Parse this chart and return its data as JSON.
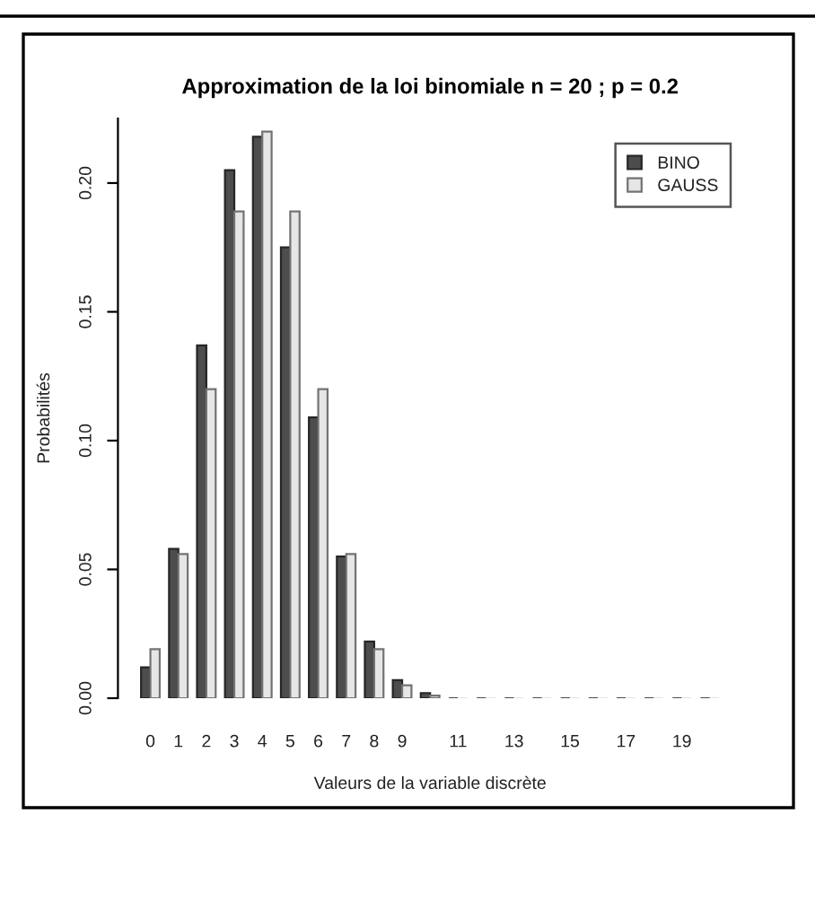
{
  "chart_data": {
    "type": "bar",
    "title": "Approximation de la loi binomiale n = 20 ; p = 0.2",
    "xlabel": "Valeurs de la variable discrète",
    "ylabel": "Probabilités",
    "categories": [
      "0",
      "1",
      "2",
      "3",
      "4",
      "5",
      "6",
      "7",
      "8",
      "9",
      null,
      "11",
      null,
      "13",
      null,
      "15",
      null,
      "17",
      null,
      "19",
      null
    ],
    "series": [
      {
        "name": "BINO",
        "color": "#4d4d4d",
        "values": [
          0.012,
          0.058,
          0.137,
          0.205,
          0.218,
          0.175,
          0.109,
          0.055,
          0.022,
          0.007,
          0.002,
          0,
          0,
          0,
          0,
          0,
          0,
          0,
          0,
          0,
          0
        ]
      },
      {
        "name": "GAUSS",
        "color": "#e6e6e6",
        "values": [
          0.019,
          0.056,
          0.12,
          0.189,
          0.22,
          0.189,
          0.12,
          0.056,
          0.019,
          0.005,
          0.001,
          0,
          0,
          0,
          0,
          0,
          0,
          0,
          0,
          0,
          0
        ]
      }
    ],
    "ylim": [
      0,
      0.225
    ],
    "yticks": [
      {
        "value": 0,
        "label": "0.00"
      },
      {
        "value": 0.05,
        "label": "0.05"
      },
      {
        "value": 0.1,
        "label": "0.10"
      },
      {
        "value": 0.15,
        "label": "0.15"
      },
      {
        "value": 0.2,
        "label": "0.20"
      }
    ],
    "legend": "top right",
    "grid": false
  }
}
